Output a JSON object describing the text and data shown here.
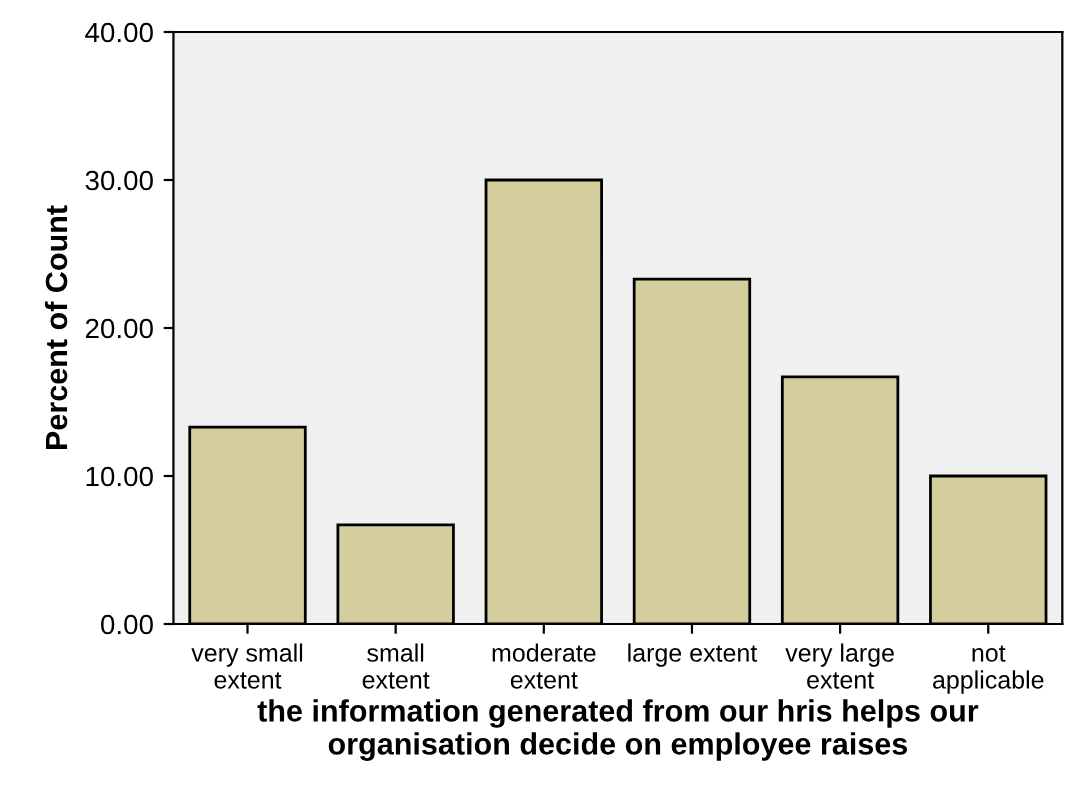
{
  "chart_data": {
    "type": "bar",
    "xlabel": "the information generated from our hris helps our\norganisation decide on employee raises",
    "ylabel": "Percent of Count",
    "categories": [
      "very small\nextent",
      "small\nextent",
      "moderate\nextent",
      "large extent",
      "very large\nextent",
      "not\napplicable"
    ],
    "values": [
      13.3,
      6.7,
      30,
      23.3,
      16.7,
      10
    ],
    "color": "#d3ce9c",
    "ylim": [
      0,
      40
    ],
    "yticks": [
      {
        "value": 0,
        "label": "0.00"
      },
      {
        "value": 10,
        "label": "10.00"
      },
      {
        "value": 20,
        "label": "20.00"
      },
      {
        "value": 30,
        "label": "30.00"
      },
      {
        "value": 40,
        "label": "40.00"
      }
    ],
    "grid": false
  }
}
